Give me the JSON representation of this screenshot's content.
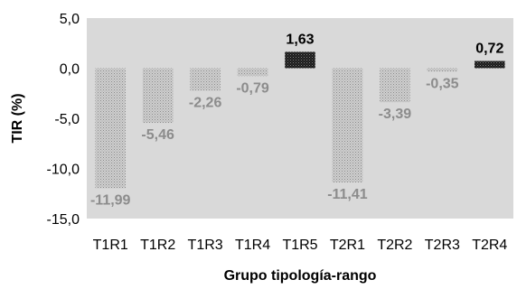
{
  "chart_data": {
    "type": "bar",
    "xlabel": "Grupo tipología-rango",
    "ylabel": "TIR (%)",
    "ylim": [
      -15,
      5
    ],
    "yticks": [
      "5,0",
      "0,0",
      "-5,0",
      "-10,0",
      "-15,0"
    ],
    "ytick_values": [
      5,
      0,
      -5,
      -10,
      -15
    ],
    "categories": [
      "T1R1",
      "T1R2",
      "T1R3",
      "T1R4",
      "T1R5",
      "T2R1",
      "T2R2",
      "T2R3",
      "T2R4"
    ],
    "values": [
      -11.99,
      -5.46,
      -2.26,
      -0.79,
      1.63,
      -11.41,
      -3.39,
      -0.35,
      0.72
    ],
    "data_labels": [
      "-11,99",
      "-5,46",
      "-2,26",
      "-0,79",
      "1,63",
      "-11,41",
      "-3,39",
      "-0,35",
      "0,72"
    ],
    "grid": false,
    "colors": {
      "plot_background": "#d9d9d9",
      "negative_bar": "#c4c4c4",
      "negative_label": "#8c8c8c",
      "positive_bar": "#1a1a1a",
      "positive_label": "#000000"
    }
  }
}
